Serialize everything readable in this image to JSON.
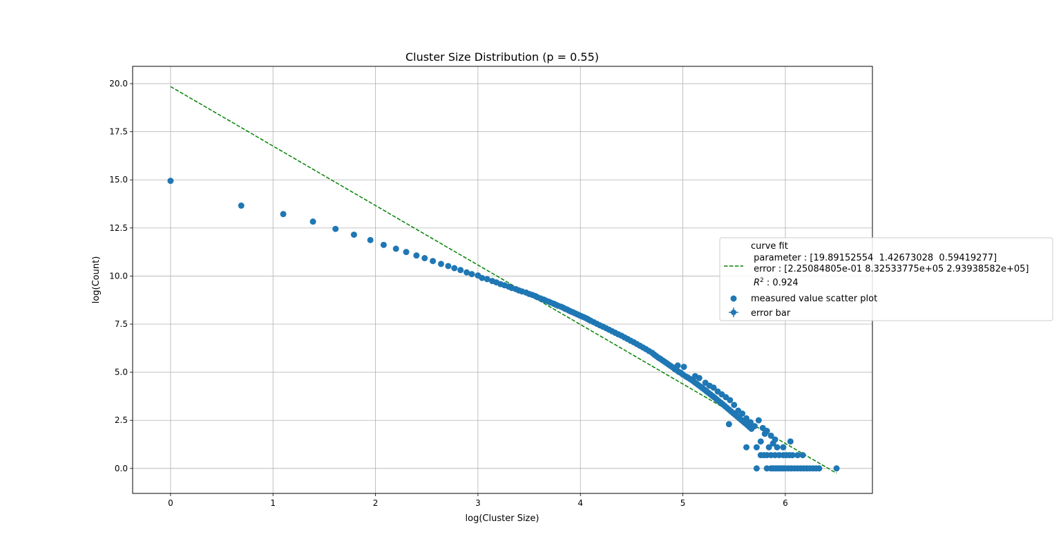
{
  "chart_data": {
    "type": "scatter",
    "title": "Cluster Size Distribution (p = 0.55)",
    "xlabel": "log(Cluster Size)",
    "ylabel": "log(Count)",
    "xlim": [
      -0.37,
      6.85
    ],
    "ylim": [
      -1.3,
      20.9
    ],
    "x_ticks": [
      0,
      1,
      2,
      3,
      4,
      5,
      6
    ],
    "x_tick_labels": [
      "0",
      "1",
      "2",
      "3",
      "4",
      "5",
      "6"
    ],
    "y_ticks": [
      0,
      2.5,
      5,
      7.5,
      10,
      12.5,
      15,
      17.5,
      20
    ],
    "y_tick_labels": [
      "0.0",
      "2.5",
      "5.0",
      "7.5",
      "10.0",
      "12.5",
      "15.0",
      "17.5",
      "20.0"
    ],
    "grid": true,
    "legend_position": "center-right, extending outside the axes",
    "legend": {
      "fit_lines": [
        "curve fit",
        " parameter : [19.89152554  1.42673028  0.59419277]",
        " error : [2.25084805e-01 8.32533775e+05 2.93938582e+05]"
      ],
      "r2_prefix": "R",
      "r2_exp": "2",
      "r2_value": " : 0.924",
      "scatter_label": "measured value scatter plot",
      "errorbar_label": "error bar"
    },
    "colors": {
      "scatter": "#1f77b4",
      "fit": "#008000",
      "grid": "#b0b0b0"
    },
    "fit_line": {
      "x": [
        0,
        6.5
      ],
      "y": [
        19.85,
        -0.25
      ],
      "style": "dashed"
    },
    "series": [
      {
        "name": "measured value scatter plot",
        "points": [
          [
            0,
            14.95
          ],
          [
            0.69,
            13.66
          ],
          [
            1.1,
            13.22
          ],
          [
            1.39,
            12.83
          ],
          [
            1.61,
            12.45
          ],
          [
            1.79,
            12.15
          ],
          [
            1.95,
            11.87
          ],
          [
            2.08,
            11.62
          ],
          [
            2.2,
            11.42
          ],
          [
            2.3,
            11.25
          ],
          [
            2.4,
            11.07
          ],
          [
            2.48,
            10.93
          ],
          [
            2.56,
            10.78
          ],
          [
            2.64,
            10.63
          ],
          [
            2.71,
            10.52
          ],
          [
            2.77,
            10.41
          ],
          [
            2.83,
            10.31
          ],
          [
            2.89,
            10.19
          ],
          [
            2.94,
            10.1
          ],
          [
            3.0,
            10.03
          ],
          [
            3.04,
            9.9
          ],
          [
            3.09,
            9.84
          ],
          [
            3.14,
            9.74
          ],
          [
            3.18,
            9.67
          ],
          [
            3.22,
            9.58
          ],
          [
            3.26,
            9.52
          ],
          [
            3.3,
            9.45
          ],
          [
            3.33,
            9.38
          ],
          [
            3.37,
            9.32
          ],
          [
            3.4,
            9.25
          ],
          [
            3.43,
            9.2
          ],
          [
            3.47,
            9.14
          ],
          [
            3.5,
            9.07
          ],
          [
            3.53,
            9.02
          ],
          [
            3.56,
            8.96
          ],
          [
            3.58,
            8.9
          ],
          [
            3.61,
            8.84
          ],
          [
            3.64,
            8.78
          ],
          [
            3.66,
            8.73
          ],
          [
            3.69,
            8.67
          ],
          [
            3.71,
            8.62
          ],
          [
            3.74,
            8.56
          ],
          [
            3.76,
            8.51
          ],
          [
            3.78,
            8.46
          ],
          [
            3.81,
            8.41
          ],
          [
            3.83,
            8.36
          ],
          [
            3.85,
            8.3
          ],
          [
            3.87,
            8.26
          ],
          [
            3.89,
            8.2
          ],
          [
            3.91,
            8.15
          ],
          [
            3.93,
            8.11
          ],
          [
            3.95,
            8.06
          ],
          [
            3.97,
            8.01
          ],
          [
            3.99,
            7.96
          ],
          [
            4.01,
            7.91
          ],
          [
            4.03,
            7.87
          ],
          [
            4.05,
            7.82
          ],
          [
            4.07,
            7.77
          ],
          [
            4.08,
            7.73
          ],
          [
            4.1,
            7.68
          ],
          [
            4.13,
            7.6
          ],
          [
            4.16,
            7.52
          ],
          [
            4.19,
            7.44
          ],
          [
            4.22,
            7.37
          ],
          [
            4.25,
            7.29
          ],
          [
            4.28,
            7.21
          ],
          [
            4.31,
            7.13
          ],
          [
            4.34,
            7.05
          ],
          [
            4.37,
            6.97
          ],
          [
            4.4,
            6.9
          ],
          [
            4.43,
            6.81
          ],
          [
            4.46,
            6.73
          ],
          [
            4.49,
            6.64
          ],
          [
            4.52,
            6.56
          ],
          [
            4.55,
            6.47
          ],
          [
            4.58,
            6.38
          ],
          [
            4.61,
            6.29
          ],
          [
            4.64,
            6.2
          ],
          [
            4.67,
            6.1
          ],
          [
            4.7,
            6.01
          ],
          [
            4.72,
            5.92
          ],
          [
            4.74,
            5.84
          ],
          [
            4.76,
            5.76
          ],
          [
            4.78,
            5.7
          ],
          [
            4.8,
            5.62
          ],
          [
            4.82,
            5.55
          ],
          [
            4.84,
            5.48
          ],
          [
            4.86,
            5.4
          ],
          [
            4.88,
            5.33
          ],
          [
            4.9,
            5.26
          ],
          [
            4.92,
            5.17
          ],
          [
            4.94,
            5.1
          ],
          [
            4.96,
            5.02
          ],
          [
            4.98,
            4.97
          ],
          [
            5.0,
            4.88
          ],
          [
            4.95,
            5.35
          ],
          [
            5.01,
            5.28
          ],
          [
            5.03,
            4.78
          ],
          [
            5.05,
            4.72
          ],
          [
            5.07,
            4.65
          ],
          [
            5.09,
            4.58
          ],
          [
            5.11,
            4.5
          ],
          [
            5.13,
            4.42
          ],
          [
            5.15,
            4.34
          ],
          [
            5.17,
            4.26
          ],
          [
            5.19,
            4.18
          ],
          [
            5.21,
            4.1
          ],
          [
            5.23,
            4.01
          ],
          [
            5.25,
            3.93
          ],
          [
            5.27,
            3.85
          ],
          [
            5.29,
            3.76
          ],
          [
            5.31,
            3.68
          ],
          [
            5.33,
            3.59
          ],
          [
            5.35,
            3.5
          ],
          [
            5.37,
            3.42
          ],
          [
            5.39,
            3.33
          ],
          [
            5.41,
            3.24
          ],
          [
            5.43,
            3.15
          ],
          [
            5.45,
            3.06
          ],
          [
            5.47,
            2.97
          ],
          [
            5.49,
            2.88
          ],
          [
            5.51,
            2.79
          ],
          [
            5.53,
            2.7
          ],
          [
            5.55,
            2.61
          ],
          [
            5.57,
            2.52
          ],
          [
            5.59,
            2.43
          ],
          [
            5.61,
            2.34
          ],
          [
            5.63,
            2.25
          ],
          [
            5.65,
            2.15
          ],
          [
            5.67,
            2.06
          ],
          [
            5.12,
            4.8
          ],
          [
            5.16,
            4.7
          ],
          [
            5.22,
            4.45
          ],
          [
            5.26,
            4.3
          ],
          [
            5.3,
            4.2
          ],
          [
            5.34,
            4.0
          ],
          [
            5.38,
            3.85
          ],
          [
            5.42,
            3.7
          ],
          [
            5.46,
            3.55
          ],
          [
            5.5,
            3.3
          ],
          [
            5.54,
            3.0
          ],
          [
            5.58,
            2.85
          ],
          [
            5.62,
            2.6
          ],
          [
            5.66,
            2.4
          ],
          [
            5.7,
            2.2
          ],
          [
            5.74,
            2.5
          ],
          [
            5.78,
            2.1
          ],
          [
            5.82,
            1.95
          ],
          [
            5.86,
            1.7
          ],
          [
            5.9,
            1.5
          ],
          [
            5.45,
            2.3
          ],
          [
            5.62,
            1.1
          ],
          [
            5.72,
            1.1
          ],
          [
            5.76,
            1.4
          ],
          [
            5.8,
            1.8
          ],
          [
            5.84,
            1.1
          ],
          [
            5.88,
            1.3
          ],
          [
            5.92,
            1.1
          ],
          [
            5.98,
            1.1
          ],
          [
            6.05,
            1.4
          ],
          [
            5.76,
            0.69
          ],
          [
            5.79,
            0.69
          ],
          [
            5.82,
            0.69
          ],
          [
            5.86,
            0.69
          ],
          [
            5.9,
            0.69
          ],
          [
            5.94,
            0.69
          ],
          [
            5.98,
            0.69
          ],
          [
            6.01,
            0.69
          ],
          [
            6.04,
            0.69
          ],
          [
            6.07,
            0.69
          ],
          [
            6.12,
            0.69
          ],
          [
            6.17,
            0.69
          ],
          [
            5.72,
            0
          ],
          [
            5.82,
            0
          ],
          [
            5.86,
            0
          ],
          [
            5.88,
            0
          ],
          [
            5.9,
            0
          ],
          [
            5.92,
            0
          ],
          [
            5.94,
            0
          ],
          [
            5.96,
            0
          ],
          [
            5.98,
            0
          ],
          [
            6.0,
            0
          ],
          [
            6.03,
            0
          ],
          [
            6.06,
            0
          ],
          [
            6.09,
            0
          ],
          [
            6.12,
            0
          ],
          [
            6.15,
            0
          ],
          [
            6.18,
            0
          ],
          [
            6.21,
            0
          ],
          [
            6.24,
            0
          ],
          [
            6.27,
            0
          ],
          [
            6.3,
            0
          ],
          [
            6.33,
            0
          ],
          [
            6.5,
            0
          ]
        ]
      }
    ]
  }
}
